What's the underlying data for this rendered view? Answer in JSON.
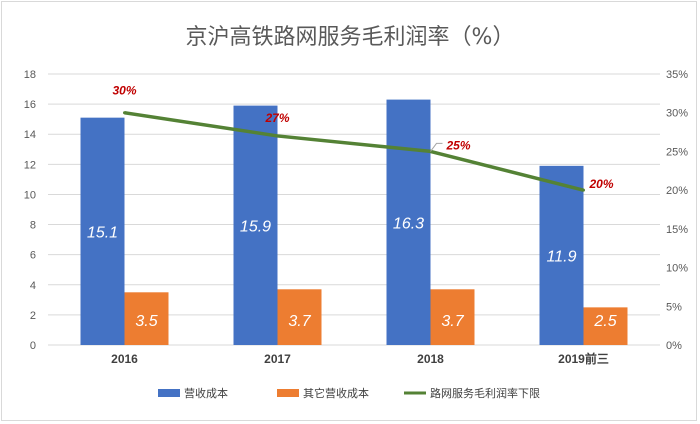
{
  "chart_data": {
    "type": "bar",
    "title": "京沪高铁路网服务毛利润率（%）",
    "categories": [
      "2016",
      "2017",
      "2018",
      "2019前三"
    ],
    "series": [
      {
        "name": "营收成本",
        "values": [
          15.1,
          15.9,
          16.3,
          11.9
        ],
        "color": "#4472c4",
        "axis": "left"
      },
      {
        "name": "其它营收成本",
        "values": [
          3.5,
          3.7,
          3.7,
          2.5
        ],
        "color": "#ed7d31",
        "axis": "left"
      },
      {
        "name": "路网服务毛利润率下限",
        "type": "line",
        "values": [
          30,
          27,
          25,
          20
        ],
        "labels": [
          "30%",
          "27%",
          "25%",
          "20%"
        ],
        "color": "#548235",
        "axis": "right"
      }
    ],
    "ylim": [
      0,
      18
    ],
    "yticks": [
      "0",
      "2",
      "4",
      "6",
      "8",
      "10",
      "12",
      "14",
      "16",
      "18"
    ],
    "y2lim": [
      0,
      35
    ],
    "y2ticks": [
      "0%",
      "5%",
      "10%",
      "15%",
      "20%",
      "25%",
      "30%",
      "35%"
    ],
    "legend_position": "bottom",
    "grid": true
  }
}
